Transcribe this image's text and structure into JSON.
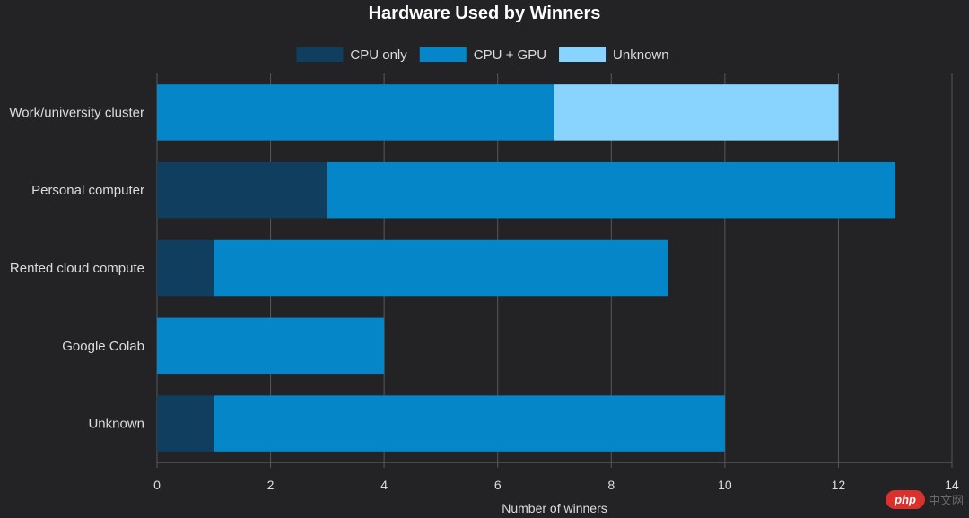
{
  "chart_data": {
    "type": "bar",
    "orientation": "horizontal",
    "stacked": true,
    "title": "Hardware Used by Winners",
    "xlabel": "Number of winners",
    "ylabel": "",
    "xlim": [
      0,
      14
    ],
    "xticks": [
      0,
      2,
      4,
      6,
      8,
      10,
      12,
      14
    ],
    "grid": true,
    "legend_position": "top",
    "categories": [
      "Work/university cluster",
      "Personal computer",
      "Rented cloud compute",
      "Google Colab",
      "Unknown"
    ],
    "series": [
      {
        "name": "CPU only",
        "color": "#0f3e5e",
        "values": [
          0,
          3,
          1,
          0,
          1
        ]
      },
      {
        "name": "CPU + GPU",
        "color": "#0586c9",
        "values": [
          7,
          10,
          8,
          4,
          9
        ]
      },
      {
        "name": "Unknown",
        "color": "#88d4fe",
        "values": [
          5,
          0,
          0,
          0,
          0
        ]
      }
    ]
  },
  "watermark": {
    "logo": "php",
    "text": "中文网"
  }
}
